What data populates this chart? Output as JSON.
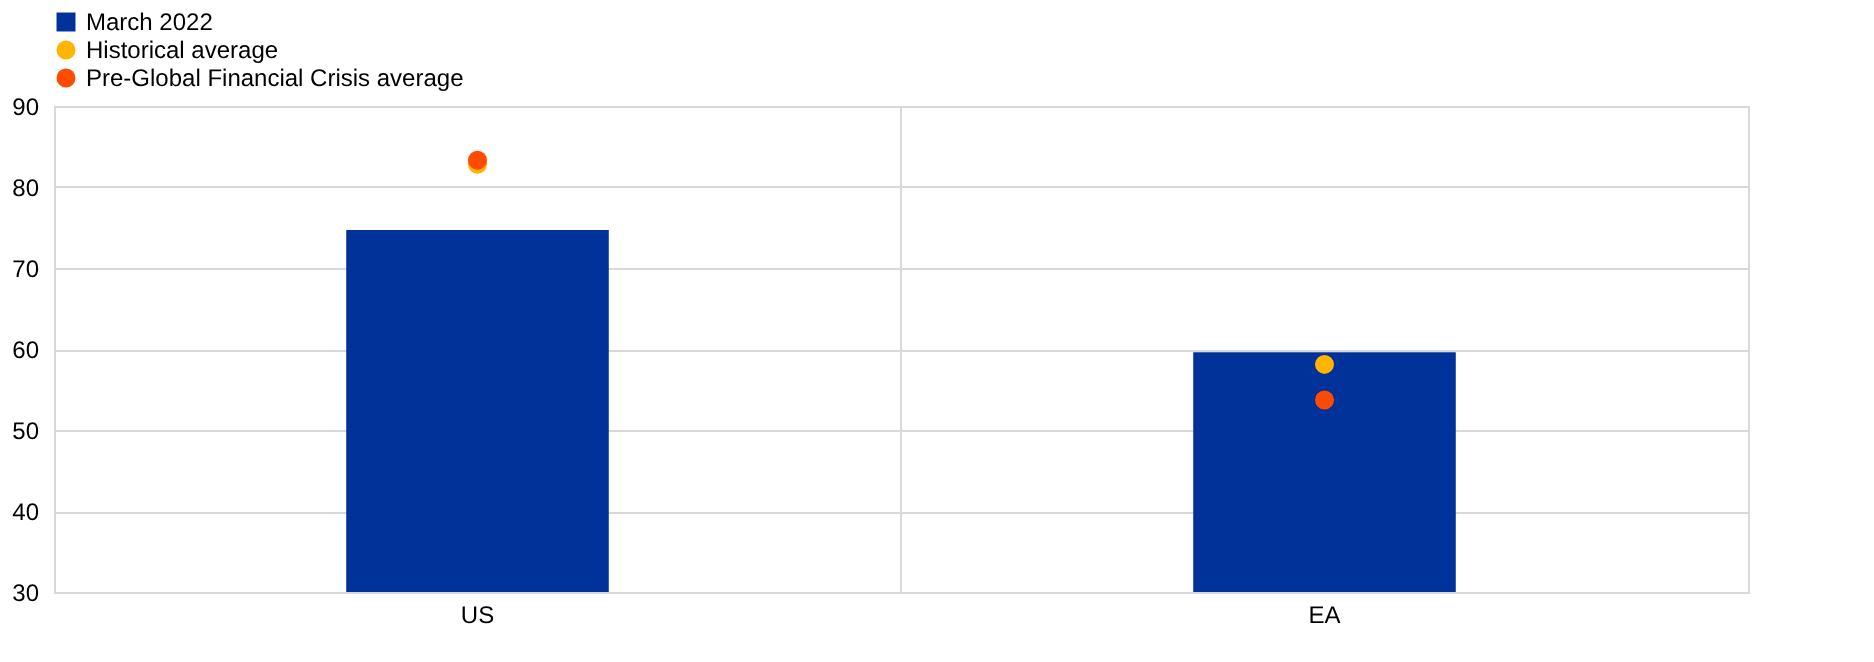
{
  "chart_data": {
    "type": "bar",
    "categories": [
      "US",
      "EA"
    ],
    "series": [
      {
        "name": "March 2022",
        "color": "#003299",
        "values": [
          74.7,
          59.6
        ]
      },
      {
        "name": "Historical average",
        "type": "scatter",
        "color": "#ffb400",
        "values": [
          82.8,
          58.1
        ]
      },
      {
        "name": "Pre-Global Financial Crisis average",
        "type": "scatter",
        "color": "#ff4b00",
        "values": [
          83.3,
          53.7
        ]
      }
    ],
    "ylim": [
      30,
      90
    ],
    "yticks": [
      30,
      40,
      50,
      60,
      70,
      80,
      90
    ],
    "grid": true,
    "legend": "top left",
    "marker": "circle"
  }
}
